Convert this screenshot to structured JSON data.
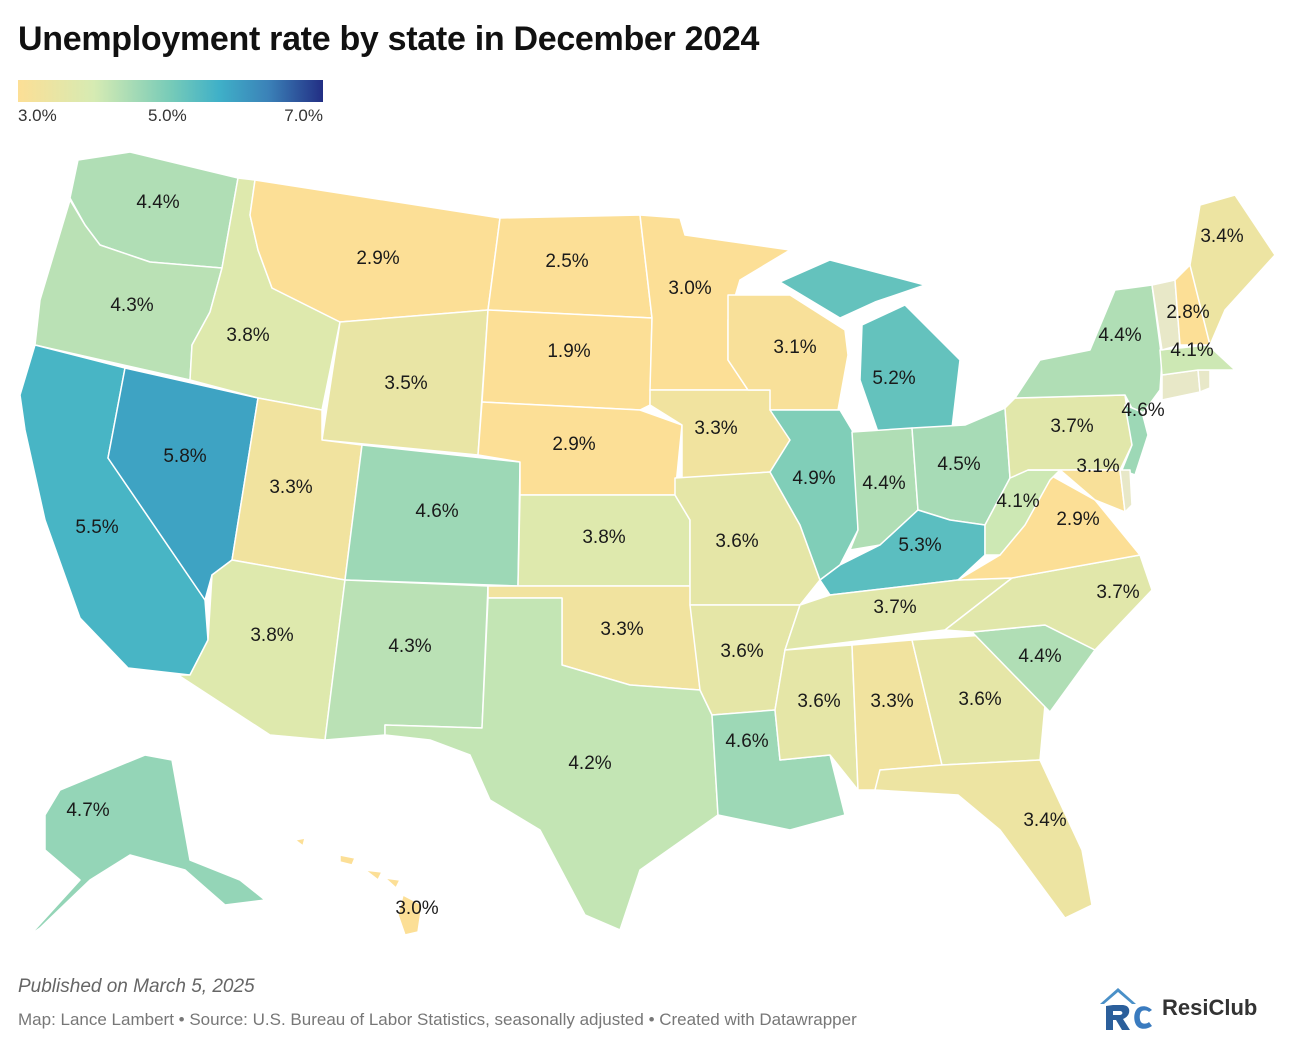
{
  "title": "Unemployment rate by state in December 2024",
  "legend": {
    "min_label": "3.0%",
    "mid_label": "5.0%",
    "max_label": "7.0%",
    "min": 3.0,
    "max": 7.0
  },
  "colors": {
    "low": "#fcdf96",
    "mid": "#77cbb8",
    "high": "#222e84"
  },
  "states": [
    {
      "id": "WA",
      "rate": 4.4,
      "label": "4.4%"
    },
    {
      "id": "OR",
      "rate": 4.3,
      "label": "4.3%"
    },
    {
      "id": "CA",
      "rate": 5.5,
      "label": "5.5%"
    },
    {
      "id": "NV",
      "rate": 5.8,
      "label": "5.8%"
    },
    {
      "id": "ID",
      "rate": 3.8,
      "label": "3.8%"
    },
    {
      "id": "MT",
      "rate": 2.9,
      "label": "2.9%"
    },
    {
      "id": "WY",
      "rate": 3.5,
      "label": "3.5%"
    },
    {
      "id": "UT",
      "rate": 3.3,
      "label": "3.3%"
    },
    {
      "id": "AZ",
      "rate": 3.8,
      "label": "3.8%"
    },
    {
      "id": "CO",
      "rate": 4.6,
      "label": "4.6%"
    },
    {
      "id": "NM",
      "rate": 4.3,
      "label": "4.3%"
    },
    {
      "id": "ND",
      "rate": 2.5,
      "label": "2.5%"
    },
    {
      "id": "SD",
      "rate": 1.9,
      "label": "1.9%"
    },
    {
      "id": "NE",
      "rate": 2.9,
      "label": "2.9%"
    },
    {
      "id": "KS",
      "rate": 3.8,
      "label": "3.8%"
    },
    {
      "id": "OK",
      "rate": 3.3,
      "label": "3.3%"
    },
    {
      "id": "TX",
      "rate": 4.2,
      "label": "4.2%"
    },
    {
      "id": "MN",
      "rate": 3.0,
      "label": "3.0%"
    },
    {
      "id": "IA",
      "rate": 3.3,
      "label": "3.3%"
    },
    {
      "id": "MO",
      "rate": 3.6,
      "label": "3.6%"
    },
    {
      "id": "AR",
      "rate": 3.6,
      "label": "3.6%"
    },
    {
      "id": "LA",
      "rate": 4.6,
      "label": "4.6%"
    },
    {
      "id": "WI",
      "rate": 3.1,
      "label": "3.1%"
    },
    {
      "id": "IL",
      "rate": 4.9,
      "label": "4.9%"
    },
    {
      "id": "MI",
      "rate": 5.2,
      "label": "5.2%"
    },
    {
      "id": "IN",
      "rate": 4.4,
      "label": "4.4%"
    },
    {
      "id": "OH",
      "rate": 4.5,
      "label": "4.5%"
    },
    {
      "id": "KY",
      "rate": 5.3,
      "label": "5.3%"
    },
    {
      "id": "TN",
      "rate": 3.7,
      "label": "3.7%"
    },
    {
      "id": "MS",
      "rate": 3.6,
      "label": "3.6%"
    },
    {
      "id": "AL",
      "rate": 3.3,
      "label": "3.3%"
    },
    {
      "id": "GA",
      "rate": 3.6,
      "label": "3.6%"
    },
    {
      "id": "FL",
      "rate": 3.4,
      "label": "3.4%"
    },
    {
      "id": "SC",
      "rate": 4.4,
      "label": "4.4%"
    },
    {
      "id": "NC",
      "rate": 3.7,
      "label": "3.7%"
    },
    {
      "id": "VA",
      "rate": 2.9,
      "label": "2.9%"
    },
    {
      "id": "WV",
      "rate": 4.1,
      "label": "4.1%"
    },
    {
      "id": "PA",
      "rate": 3.7,
      "label": "3.7%"
    },
    {
      "id": "NY",
      "rate": 4.4,
      "label": "4.4%"
    },
    {
      "id": "NJ",
      "rate": 4.6,
      "label": "4.6%"
    },
    {
      "id": "MD",
      "rate": 3.1,
      "label": "3.1%"
    },
    {
      "id": "DE",
      "rate": null,
      "label": ""
    },
    {
      "id": "CT",
      "rate": null,
      "label": ""
    },
    {
      "id": "RI",
      "rate": null,
      "label": ""
    },
    {
      "id": "MA",
      "rate": 4.1,
      "label": "4.1%"
    },
    {
      "id": "VT",
      "rate": null,
      "label": ""
    },
    {
      "id": "NH",
      "rate": 2.8,
      "label": "2.8%"
    },
    {
      "id": "ME",
      "rate": 3.4,
      "label": "3.4%"
    },
    {
      "id": "AK",
      "rate": 4.7,
      "label": "4.7%"
    },
    {
      "id": "HI",
      "rate": 3.0,
      "label": "3.0%"
    }
  ],
  "footer": {
    "published": "Published on March 5, 2025",
    "source": "Map: Lance Lambert • Source: U.S. Bureau of Labor Statistics, seasonally adjusted • Created with Datawrapper",
    "brand": "ResiClub"
  }
}
